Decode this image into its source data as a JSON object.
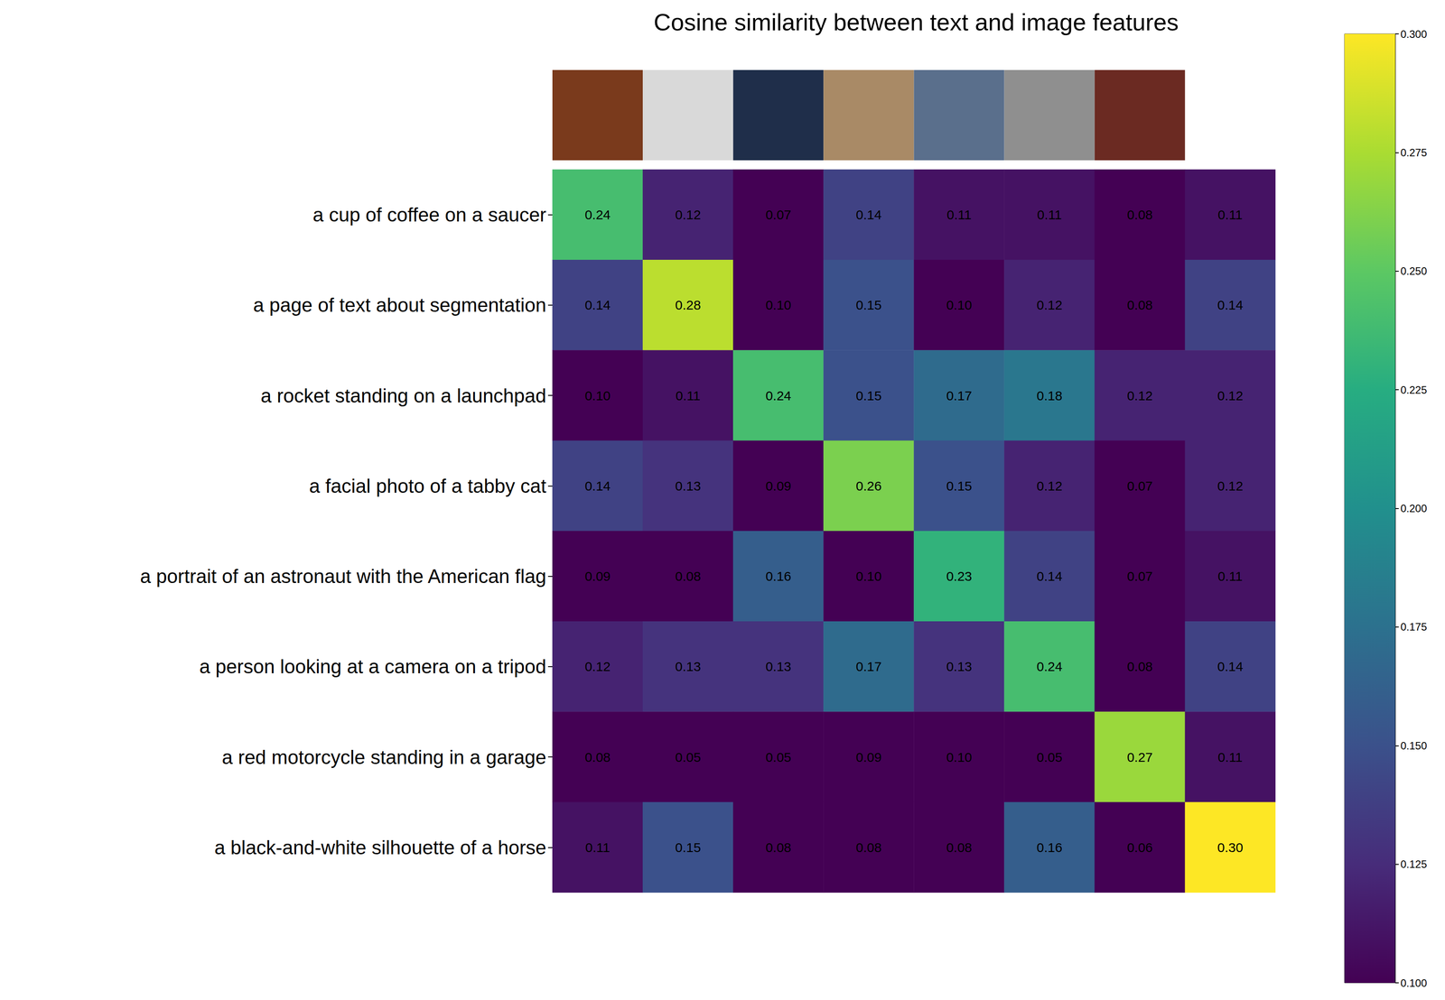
{
  "chart_data": {
    "type": "heatmap",
    "title": "Cosine similarity between text and image features",
    "categories": [
      "a cup of coffee on a saucer",
      "a page of text about segmentation",
      "a rocket standing on a launchpad",
      "a facial photo of a tabby cat",
      "a portrait of an astronaut with the American flag",
      "a person looking at a camera on a tripod",
      "a red motorcycle standing in a garage",
      "a black-and-white silhouette of a horse"
    ],
    "cells": [
      [
        0.24,
        0.12,
        0.07,
        0.14,
        0.11,
        0.11,
        0.08,
        0.11
      ],
      [
        0.14,
        0.28,
        0.1,
        0.15,
        0.1,
        0.12,
        0.08,
        0.14
      ],
      [
        0.1,
        0.11,
        0.24,
        0.15,
        0.17,
        0.18,
        0.12,
        0.12
      ],
      [
        0.14,
        0.13,
        0.09,
        0.26,
        0.15,
        0.12,
        0.07,
        0.12
      ],
      [
        0.09,
        0.08,
        0.16,
        0.1,
        0.23,
        0.14,
        0.07,
        0.11
      ],
      [
        0.12,
        0.13,
        0.13,
        0.17,
        0.13,
        0.24,
        0.08,
        0.14
      ],
      [
        0.08,
        0.05,
        0.05,
        0.09,
        0.1,
        0.05,
        0.27,
        0.11
      ],
      [
        0.11,
        0.15,
        0.08,
        0.08,
        0.08,
        0.16,
        0.06,
        0.3
      ]
    ],
    "value_labels": [
      [
        "0.24",
        "0.12",
        "0.07",
        "0.14",
        "0.11",
        "0.11",
        "0.08",
        "0.11"
      ],
      [
        "0.14",
        "0.28",
        "0.10",
        "0.15",
        "0.10",
        "0.12",
        "0.08",
        "0.14"
      ],
      [
        "0.10",
        "0.11",
        "0.24",
        "0.15",
        "0.17",
        "0.18",
        "0.12",
        "0.12"
      ],
      [
        "0.14",
        "0.13",
        "0.09",
        "0.26",
        "0.15",
        "0.12",
        "0.07",
        "0.12"
      ],
      [
        "0.09",
        "0.08",
        "0.16",
        "0.10",
        "0.23",
        "0.14",
        "0.07",
        "0.11"
      ],
      [
        "0.12",
        "0.13",
        "0.13",
        "0.17",
        "0.13",
        "0.24",
        "0.08",
        "0.14"
      ],
      [
        "0.08",
        "0.05",
        "0.05",
        "0.09",
        "0.10",
        "0.05",
        "0.27",
        "0.11"
      ],
      [
        "0.11",
        "0.15",
        "0.08",
        "0.08",
        "0.08",
        "0.16",
        "0.06",
        "0.30"
      ]
    ],
    "color": "viridis",
    "color_range": [
      0.1,
      0.3
    ],
    "color_ticks": [
      {
        "value": 0.1,
        "label": "0.100"
      },
      {
        "value": 0.125,
        "label": "0.125"
      },
      {
        "value": 0.15,
        "label": "0.150"
      },
      {
        "value": 0.175,
        "label": "0.175"
      },
      {
        "value": 0.2,
        "label": "0.200"
      },
      {
        "value": 0.225,
        "label": "0.225"
      },
      {
        "value": 0.25,
        "label": "0.250"
      },
      {
        "value": 0.275,
        "label": "0.275"
      },
      {
        "value": 0.3,
        "label": "0.300"
      }
    ],
    "data_labels": true,
    "tick_labels": "y"
  }
}
